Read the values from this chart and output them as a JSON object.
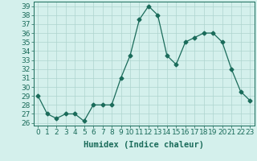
{
  "x": [
    0,
    1,
    2,
    3,
    4,
    5,
    6,
    7,
    8,
    9,
    10,
    11,
    12,
    13,
    14,
    15,
    16,
    17,
    18,
    19,
    20,
    21,
    22,
    23
  ],
  "y": [
    29,
    27,
    26.5,
    27,
    27,
    26.2,
    28,
    28,
    28,
    31,
    33.5,
    37.5,
    39,
    38,
    33.5,
    32.5,
    35,
    35.5,
    36,
    36,
    35,
    32,
    29.5,
    28.5
  ],
  "line_color": "#1a6b5a",
  "marker": "D",
  "marker_size": 2.5,
  "bg_color": "#d4f0ec",
  "grid_color": "#aed4ce",
  "xlabel": "Humidex (Indice chaleur)",
  "ylim": [
    25.7,
    39.5
  ],
  "xlim": [
    -0.5,
    23.5
  ],
  "yticks": [
    26,
    27,
    28,
    29,
    30,
    31,
    32,
    33,
    34,
    35,
    36,
    37,
    38,
    39
  ],
  "xticks": [
    0,
    1,
    2,
    3,
    4,
    5,
    6,
    7,
    8,
    9,
    10,
    11,
    12,
    13,
    14,
    15,
    16,
    17,
    18,
    19,
    20,
    21,
    22,
    23
  ],
  "xlabel_fontsize": 7.5,
  "tick_fontsize": 6.5,
  "axis_color": "#1a6b5a"
}
